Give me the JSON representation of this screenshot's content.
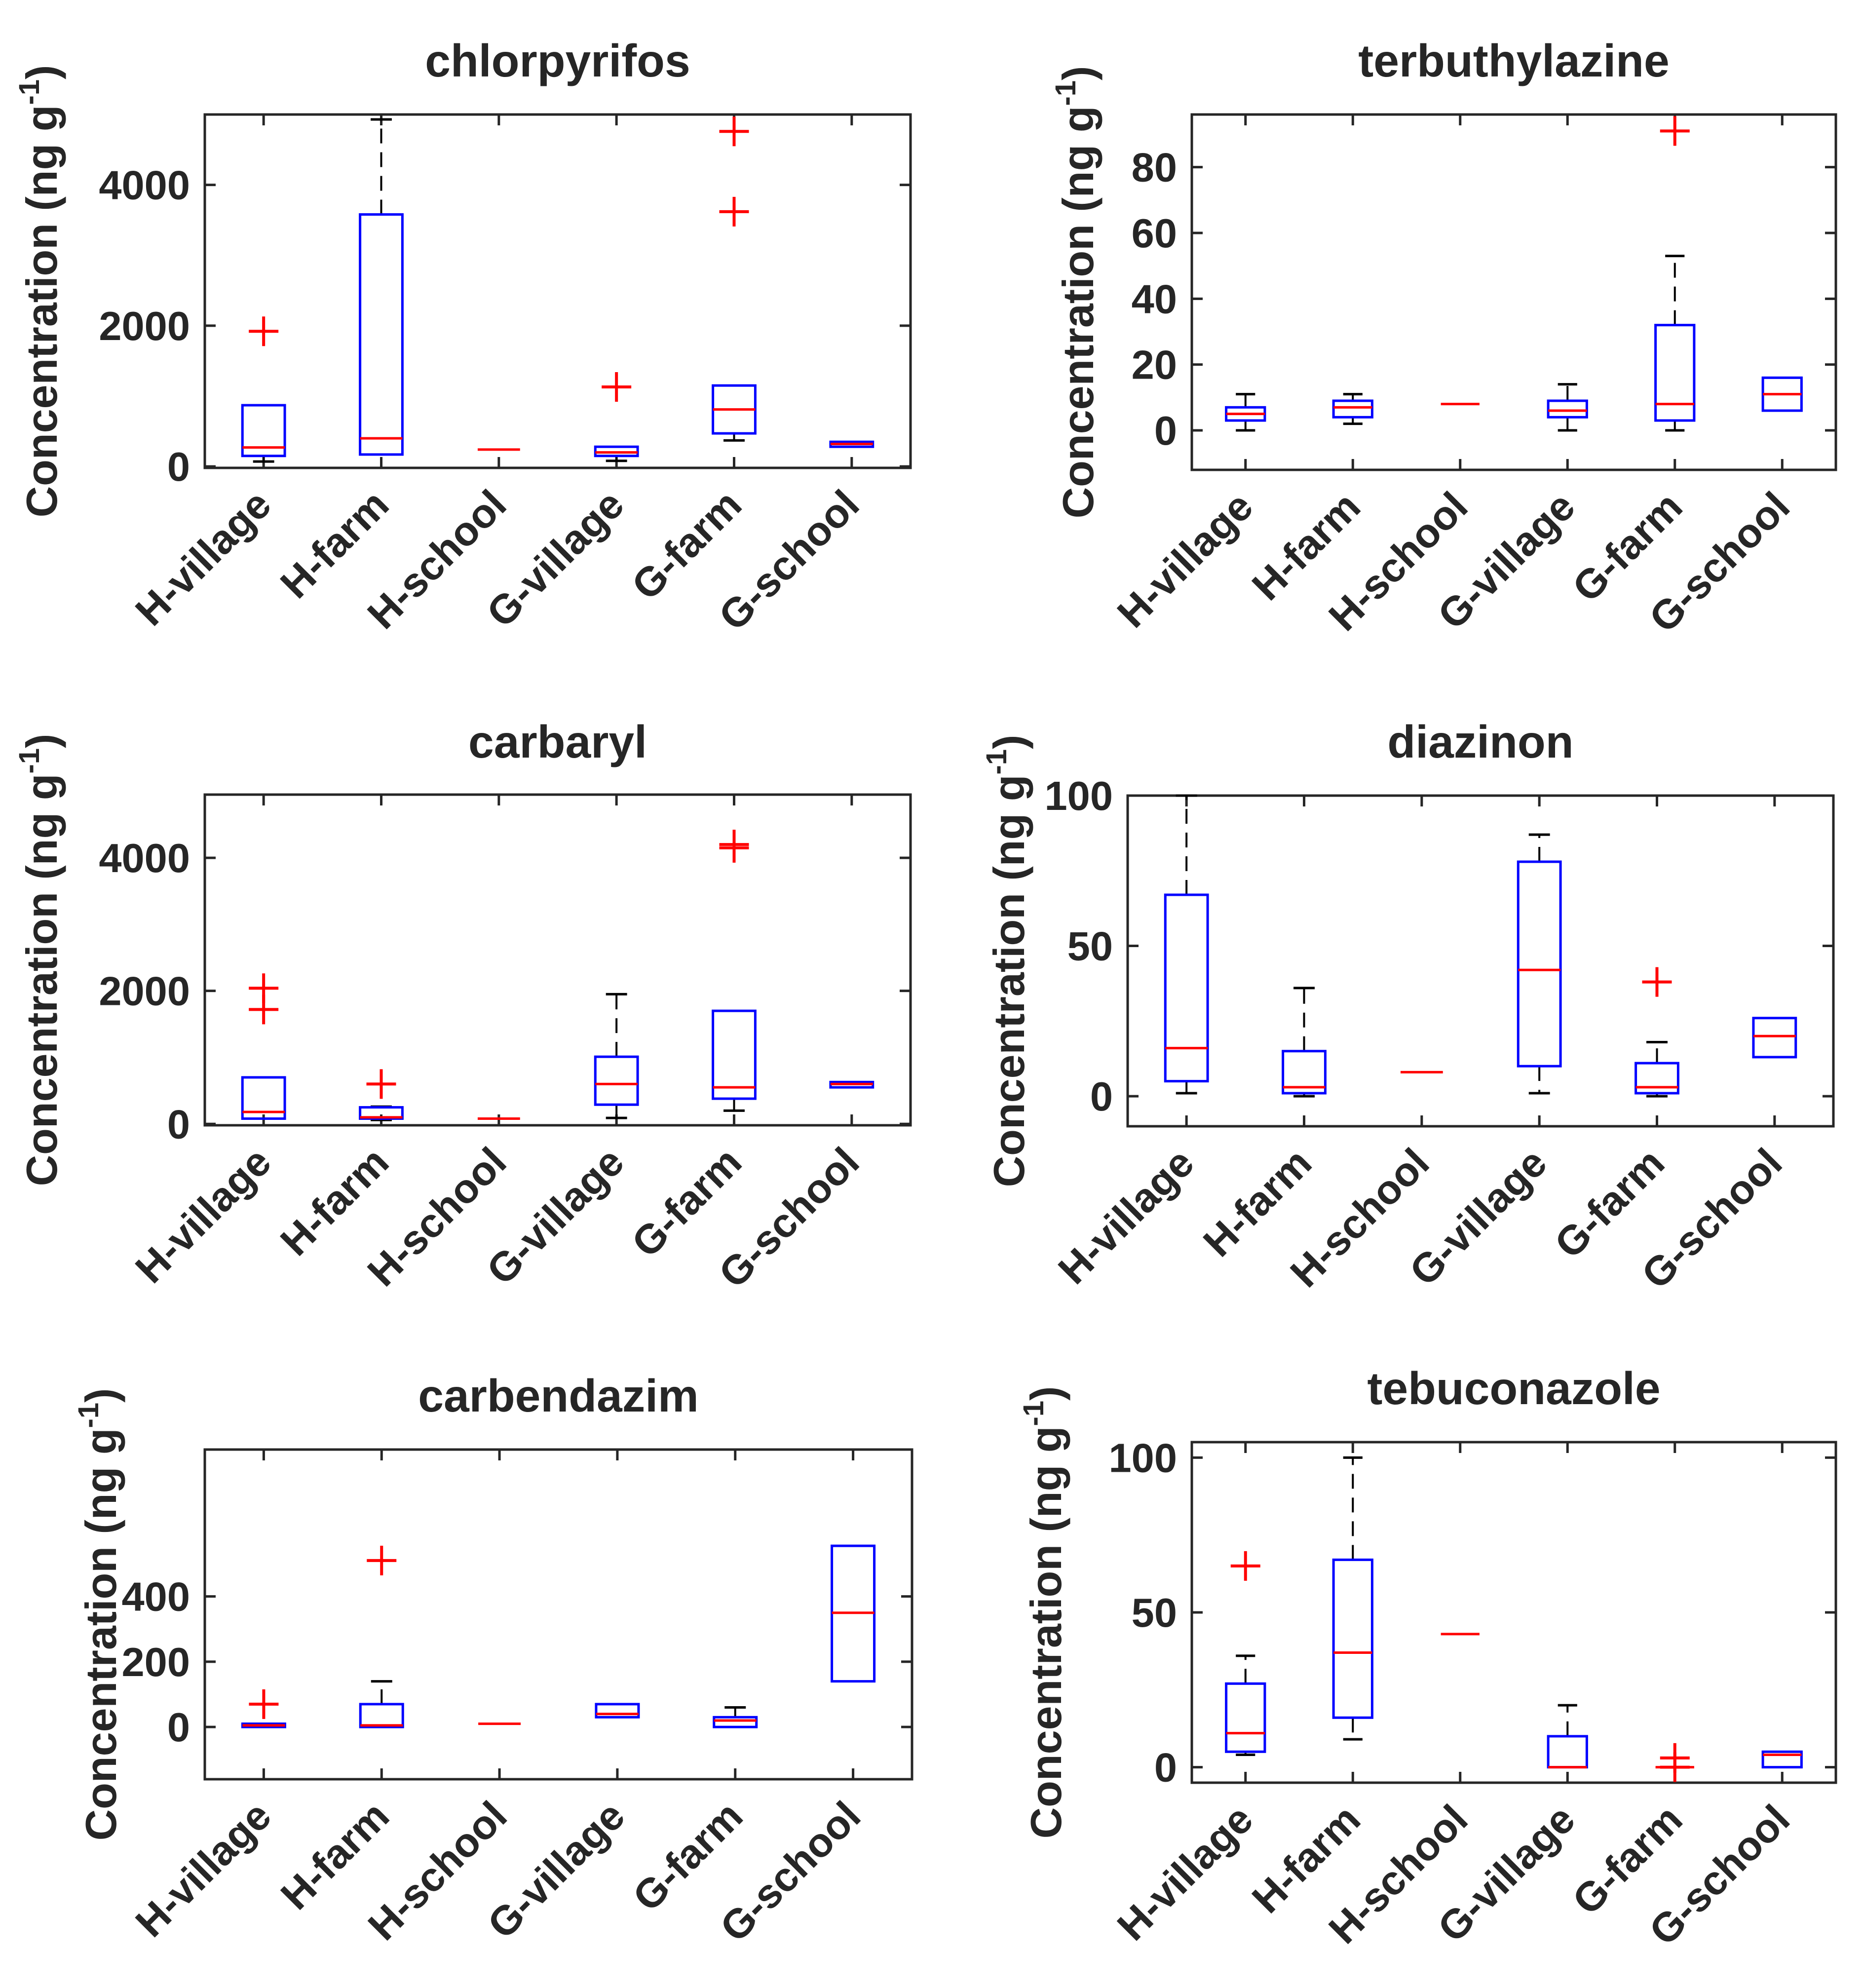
{
  "chart_data": [
    {
      "type": "box",
      "title": "chlorpyrifos",
      "ylabel": "Concentration (ng g",
      "ylabel_sup": "-1",
      "ylabel_close": ")",
      "ylim": [
        -20,
        5000
      ],
      "yticks": [
        0,
        2000,
        4000
      ],
      "categories": [
        "H-village",
        "H-farm",
        "H-school",
        "G-village",
        "G-farm",
        "G-school"
      ],
      "boxes": [
        {
          "whisker_low": 70,
          "q1": 150,
          "median": 270,
          "q3": 870,
          "whisker_high": 870,
          "outliers": [
            1920
          ]
        },
        {
          "whisker_low": 170,
          "q1": 170,
          "median": 400,
          "q3": 3580,
          "whisker_high": 4930,
          "outliers": []
        },
        {
          "whisker_low": 240,
          "q1": 240,
          "median": 240,
          "q3": 240,
          "whisker_high": 240,
          "outliers": []
        },
        {
          "whisker_low": 80,
          "q1": 150,
          "median": 200,
          "q3": 280,
          "whisker_high": 280,
          "outliers": [
            1130
          ]
        },
        {
          "whisker_low": 370,
          "q1": 470,
          "median": 810,
          "q3": 1150,
          "whisker_high": 1150,
          "outliers": [
            3620,
            4760
          ]
        },
        {
          "whisker_low": 280,
          "q1": 280,
          "median": 320,
          "q3": 350,
          "whisker_high": 350,
          "outliers": []
        }
      ]
    },
    {
      "type": "box",
      "title": "terbuthylazine",
      "ylabel": "Concentration (ng g",
      "ylabel_sup": "-1",
      "ylabel_close": ")",
      "ylim": [
        -12,
        96
      ],
      "yticks": [
        0,
        20,
        40,
        60,
        80
      ],
      "categories": [
        "H-village",
        "H-farm",
        "H-school",
        "G-village",
        "G-farm",
        "G-school"
      ],
      "boxes": [
        {
          "whisker_low": 0,
          "q1": 3,
          "median": 5,
          "q3": 7,
          "whisker_high": 11,
          "outliers": []
        },
        {
          "whisker_low": 2,
          "q1": 4,
          "median": 7,
          "q3": 9,
          "whisker_high": 11,
          "outliers": []
        },
        {
          "whisker_low": 8,
          "q1": 8,
          "median": 8,
          "q3": 8,
          "whisker_high": 8,
          "outliers": []
        },
        {
          "whisker_low": 0,
          "q1": 4,
          "median": 6,
          "q3": 9,
          "whisker_high": 14,
          "outliers": []
        },
        {
          "whisker_low": 0,
          "q1": 3,
          "median": 8,
          "q3": 32,
          "whisker_high": 53,
          "outliers": [
            91
          ]
        },
        {
          "whisker_low": 6,
          "q1": 6,
          "median": 11,
          "q3": 16,
          "whisker_high": 16,
          "outliers": []
        }
      ]
    },
    {
      "type": "box",
      "title": "carbaryl",
      "ylabel": "Concentration (ng g",
      "ylabel_sup": "-1",
      "ylabel_close": ")",
      "ylim": [
        -20,
        4950
      ],
      "yticks": [
        0,
        2000,
        4000
      ],
      "categories": [
        "H-village",
        "H-farm",
        "H-school",
        "G-village",
        "G-farm",
        "G-school"
      ],
      "boxes": [
        {
          "whisker_low": 80,
          "q1": 80,
          "median": 180,
          "q3": 700,
          "whisker_high": 700,
          "outliers": [
            1720,
            2040
          ]
        },
        {
          "whisker_low": 60,
          "q1": 80,
          "median": 100,
          "q3": 250,
          "whisker_high": 260,
          "outliers": [
            600
          ]
        },
        {
          "whisker_low": 80,
          "q1": 80,
          "median": 80,
          "q3": 80,
          "whisker_high": 80,
          "outliers": []
        },
        {
          "whisker_low": 90,
          "q1": 290,
          "median": 600,
          "q3": 1010,
          "whisker_high": 1950,
          "outliers": []
        },
        {
          "whisker_low": 200,
          "q1": 380,
          "median": 550,
          "q3": 1700,
          "whisker_high": 1700,
          "outliers": [
            4150,
            4200
          ]
        },
        {
          "whisker_low": 550,
          "q1": 550,
          "median": 600,
          "q3": 630,
          "whisker_high": 630,
          "outliers": []
        }
      ]
    },
    {
      "type": "box",
      "title": "diazinon",
      "ylabel": "Concentration (ng g",
      "ylabel_sup": "-1",
      "ylabel_close": ")",
      "ylim": [
        -10,
        100
      ],
      "yticks": [
        0,
        50,
        100
      ],
      "categories": [
        "H-village",
        "H-farm",
        "H-school",
        "G-village",
        "G-farm",
        "G-school"
      ],
      "boxes": [
        {
          "whisker_low": 1,
          "q1": 5,
          "median": 16,
          "q3": 67,
          "whisker_high": 100,
          "outliers": []
        },
        {
          "whisker_low": 0,
          "q1": 1,
          "median": 3,
          "q3": 15,
          "whisker_high": 36,
          "outliers": []
        },
        {
          "whisker_low": 8,
          "q1": 8,
          "median": 8,
          "q3": 8,
          "whisker_high": 8,
          "outliers": []
        },
        {
          "whisker_low": 1,
          "q1": 10,
          "median": 42,
          "q3": 78,
          "whisker_high": 87,
          "outliers": []
        },
        {
          "whisker_low": 0,
          "q1": 1,
          "median": 3,
          "q3": 11,
          "whisker_high": 18,
          "outliers": [
            38
          ]
        },
        {
          "whisker_low": 13,
          "q1": 13,
          "median": 20,
          "q3": 26,
          "whisker_high": 26,
          "outliers": []
        }
      ]
    },
    {
      "type": "box",
      "title": "carbendazim",
      "ylabel": "Concentration (ng g",
      "ylabel_sup": "-1",
      "ylabel_close": ")",
      "ylim": [
        -160,
        850
      ],
      "yticks": [
        0,
        200,
        400
      ],
      "categories": [
        "H-village",
        "H-farm",
        "H-school",
        "G-village",
        "G-farm",
        "G-school"
      ],
      "boxes": [
        {
          "whisker_low": 0,
          "q1": 0,
          "median": 5,
          "q3": 10,
          "whisker_high": 10,
          "outliers": [
            70
          ]
        },
        {
          "whisker_low": 0,
          "q1": 0,
          "median": 5,
          "q3": 70,
          "whisker_high": 140,
          "outliers": [
            510
          ]
        },
        {
          "whisker_low": 10,
          "q1": 10,
          "median": 10,
          "q3": 10,
          "whisker_high": 10,
          "outliers": []
        },
        {
          "whisker_low": 30,
          "q1": 30,
          "median": 40,
          "q3": 70,
          "whisker_high": 70,
          "outliers": []
        },
        {
          "whisker_low": 0,
          "q1": 0,
          "median": 20,
          "q3": 30,
          "whisker_high": 60,
          "outliers": []
        },
        {
          "whisker_low": 140,
          "q1": 140,
          "median": 350,
          "q3": 555,
          "whisker_high": 555,
          "outliers": []
        }
      ]
    },
    {
      "type": "box",
      "title": "tebuconazole",
      "ylabel": "Concentration (ng g",
      "ylabel_sup": "-1",
      "ylabel_close": ")",
      "ylim": [
        -5,
        105
      ],
      "yticks": [
        0,
        50,
        100
      ],
      "categories": [
        "H-village",
        "H-farm",
        "H-school",
        "G-village",
        "G-farm",
        "G-school"
      ],
      "boxes": [
        {
          "whisker_low": 4,
          "q1": 5,
          "median": 11,
          "q3": 27,
          "whisker_high": 36,
          "outliers": [
            65
          ]
        },
        {
          "whisker_low": 9,
          "q1": 16,
          "median": 37,
          "q3": 67,
          "whisker_high": 100,
          "outliers": []
        },
        {
          "whisker_low": 43,
          "q1": 43,
          "median": 43,
          "q3": 43,
          "whisker_high": 43,
          "outliers": []
        },
        {
          "whisker_low": 0,
          "q1": 0,
          "median": 0,
          "q3": 10,
          "whisker_high": 20,
          "outliers": []
        },
        {
          "whisker_low": 0,
          "q1": 0,
          "median": 0,
          "q3": 0,
          "whisker_high": 0,
          "outliers": [
            0,
            3
          ]
        },
        {
          "whisker_low": 0,
          "q1": 0,
          "median": 4,
          "q3": 5,
          "whisker_high": 5,
          "outliers": []
        }
      ]
    }
  ],
  "colors": {
    "box": "#0000ff",
    "median": "#ff0000",
    "whisker": "#000000",
    "outlier": "#ff0000",
    "axis": "#262626"
  }
}
